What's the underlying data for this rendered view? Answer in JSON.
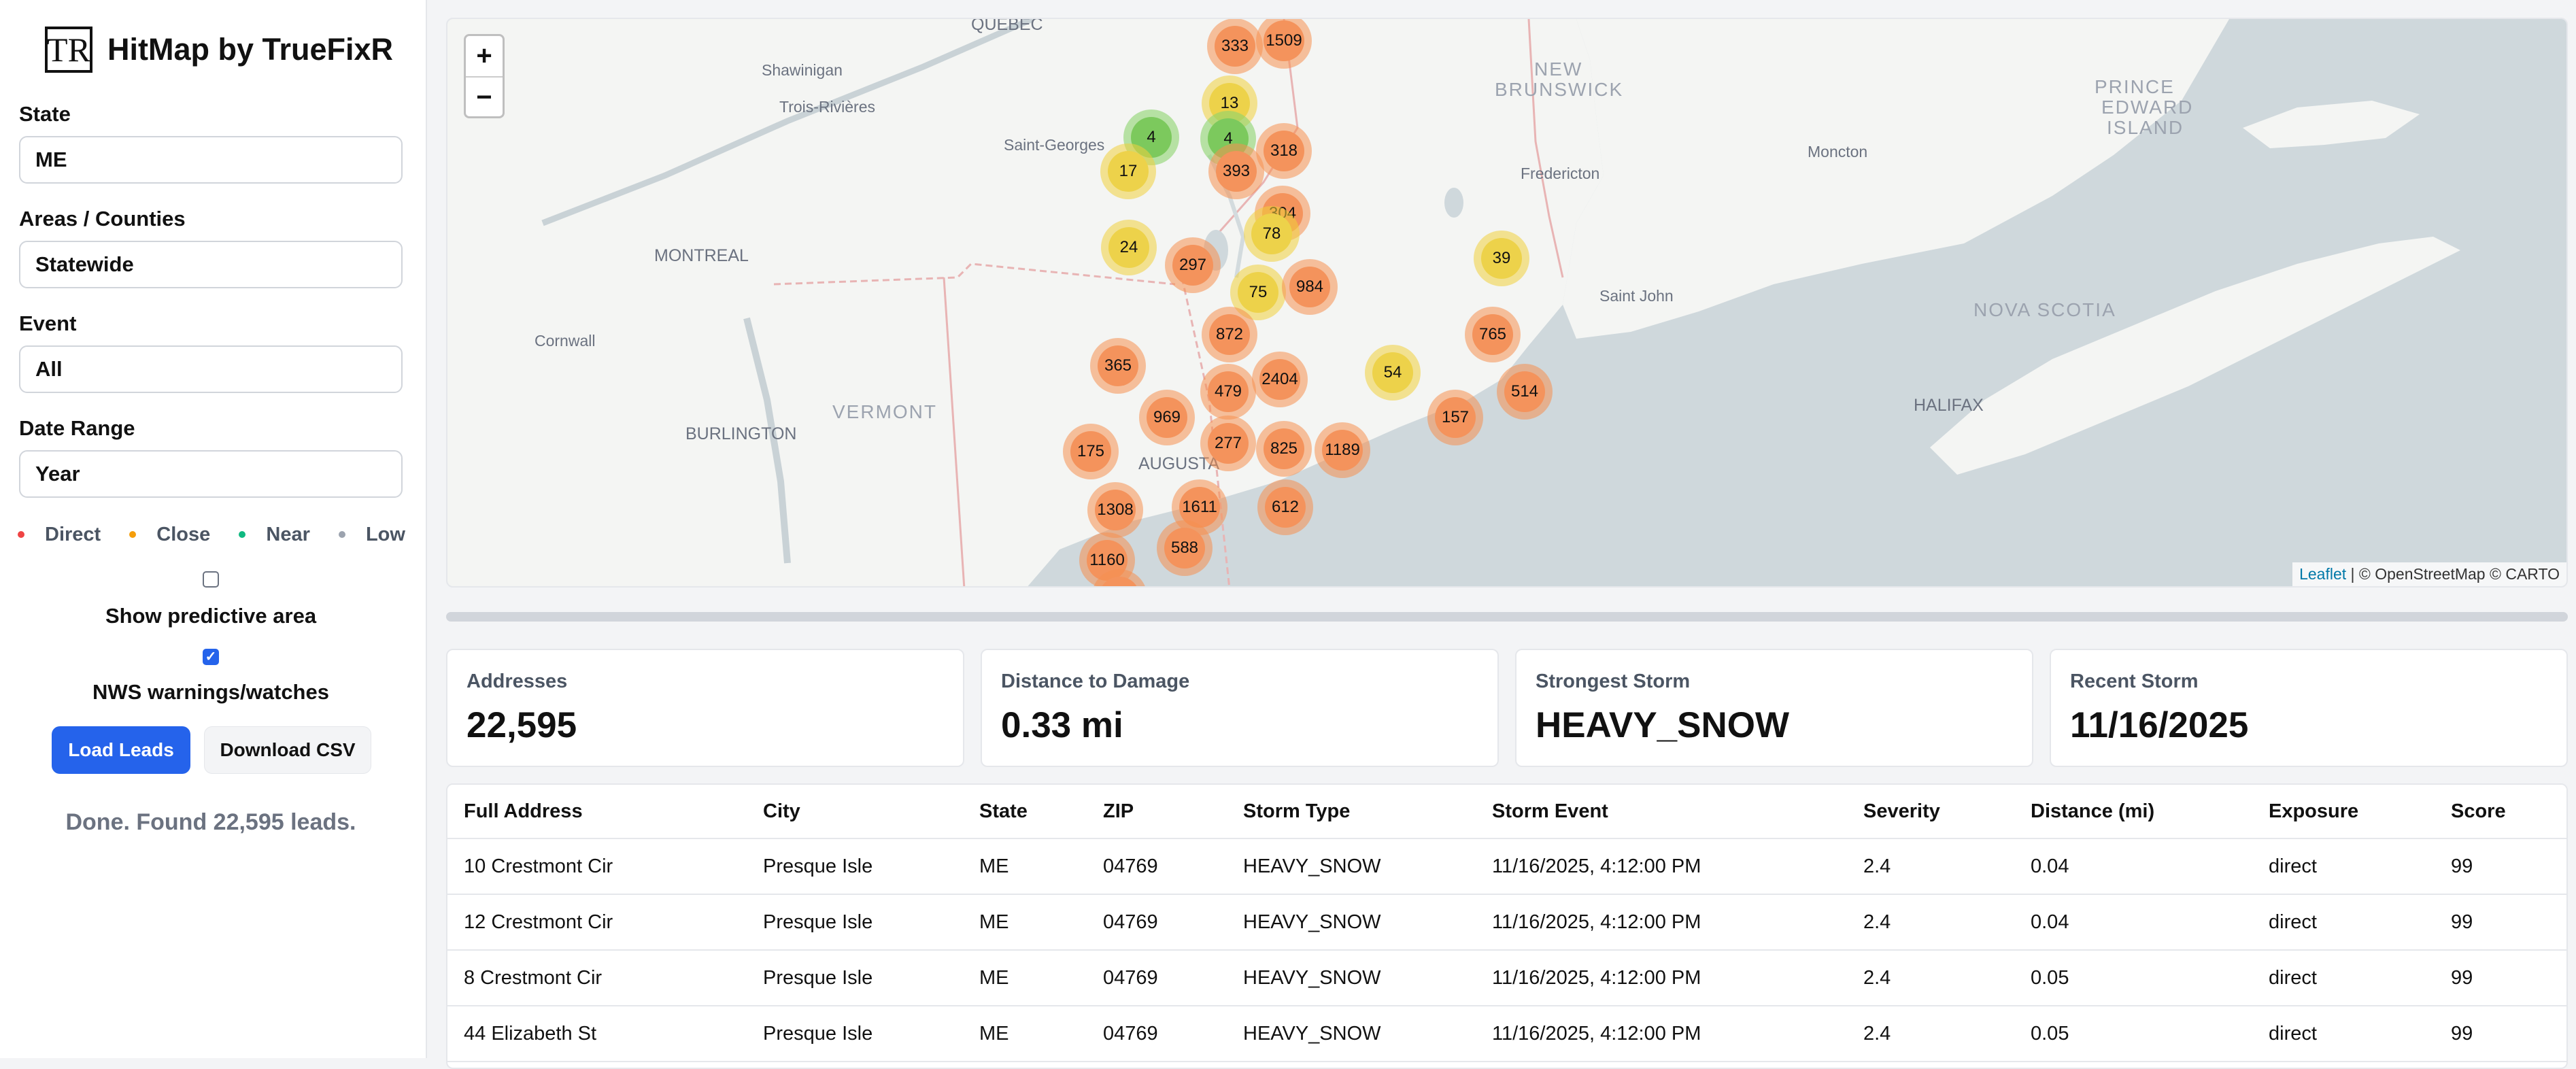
{
  "app": {
    "logo_text": "TR",
    "title": "HitMap by TrueFixR"
  },
  "filters": {
    "state": {
      "label": "State",
      "value": "ME"
    },
    "areas": {
      "label": "Areas / Counties",
      "value": "Statewide"
    },
    "event": {
      "label": "Event",
      "value": "All"
    },
    "date_range": {
      "label": "Date Range",
      "value": "Year"
    }
  },
  "legend": [
    {
      "label": "Direct",
      "color": "#ef4444"
    },
    {
      "label": "Close",
      "color": "#f59e0b"
    },
    {
      "label": "Near",
      "color": "#10b981"
    },
    {
      "label": "Low",
      "color": "#9ca3af"
    }
  ],
  "options": {
    "predictive": {
      "label": "Show predictive area",
      "checked": false
    },
    "nws": {
      "label": "NWS warnings/watches",
      "checked": true
    }
  },
  "buttons": {
    "load": "Load Leads",
    "download": "Download CSV"
  },
  "status": "Done. Found 22,595 leads.",
  "map": {
    "zoom_in": "+",
    "zoom_out": "−",
    "attribution_link": "Leaflet",
    "attribution_rest": " | © OpenStreetMap © CARTO",
    "places": {
      "quebec": "QUÉBEC",
      "shawinigan": "Shawinigan",
      "trois_rivieres": "Trois-Rivières",
      "saint_georges": "Saint-Georges",
      "montreal": "MONTREAL",
      "cornwall": "Cornwall",
      "vermont": "VERMONT",
      "burlington": "BURLINGTON",
      "augusta": "AUGUSTA",
      "new_brunswick_1": "NEW",
      "new_brunswick_2": "BRUNSWICK",
      "fredericton": "Fredericton",
      "saint_john": "Saint John",
      "moncton": "Moncton",
      "pei_1": "PRINCE",
      "pei_2": "EDWARD",
      "pei_3": "ISLAND",
      "nova_scotia": "NOVA SCOTIA",
      "halifax": "HALIFAX"
    },
    "clusters": [
      {
        "count": "333",
        "color": "orange"
      },
      {
        "count": "1509",
        "color": "orange"
      },
      {
        "count": "13",
        "color": "yellow"
      },
      {
        "count": "4",
        "color": "green"
      },
      {
        "count": "4",
        "color": "green"
      },
      {
        "count": "17",
        "color": "yellow"
      },
      {
        "count": "318",
        "color": "orange"
      },
      {
        "count": "393",
        "color": "orange"
      },
      {
        "count": "304",
        "color": "orange"
      },
      {
        "count": "78",
        "color": "yellow"
      },
      {
        "count": "24",
        "color": "yellow"
      },
      {
        "count": "297",
        "color": "orange"
      },
      {
        "count": "39",
        "color": "yellow"
      },
      {
        "count": "75",
        "color": "yellow"
      },
      {
        "count": "984",
        "color": "orange"
      },
      {
        "count": "872",
        "color": "orange"
      },
      {
        "count": "765",
        "color": "orange"
      },
      {
        "count": "365",
        "color": "orange"
      },
      {
        "count": "54",
        "color": "yellow"
      },
      {
        "count": "2404",
        "color": "orange"
      },
      {
        "count": "479",
        "color": "orange"
      },
      {
        "count": "514",
        "color": "orange"
      },
      {
        "count": "969",
        "color": "orange"
      },
      {
        "count": "157",
        "color": "orange"
      },
      {
        "count": "277",
        "color": "orange"
      },
      {
        "count": "825",
        "color": "orange"
      },
      {
        "count": "1189",
        "color": "orange"
      },
      {
        "count": "175",
        "color": "orange"
      },
      {
        "count": "1611",
        "color": "orange"
      },
      {
        "count": "612",
        "color": "orange"
      },
      {
        "count": "1308",
        "color": "orange"
      },
      {
        "count": "588",
        "color": "orange"
      },
      {
        "count": "1160",
        "color": "orange"
      },
      {
        "count": "",
        "color": "orange"
      }
    ]
  },
  "stats": [
    {
      "label": "Addresses",
      "value": "22,595"
    },
    {
      "label": "Distance to Damage",
      "value": "0.33 mi"
    },
    {
      "label": "Strongest Storm",
      "value": "HEAVY_SNOW"
    },
    {
      "label": "Recent Storm",
      "value": "11/16/2025"
    }
  ],
  "table": {
    "columns": [
      "Full Address",
      "City",
      "State",
      "ZIP",
      "Storm Type",
      "Storm Event",
      "Severity",
      "Distance (mi)",
      "Exposure",
      "Score"
    ],
    "rows": [
      [
        "10 Crestmont Cir",
        "Presque Isle",
        "ME",
        "04769",
        "HEAVY_SNOW",
        "11/16/2025, 4:12:00 PM",
        "2.4",
        "0.04",
        "direct",
        "99"
      ],
      [
        "12 Crestmont Cir",
        "Presque Isle",
        "ME",
        "04769",
        "HEAVY_SNOW",
        "11/16/2025, 4:12:00 PM",
        "2.4",
        "0.04",
        "direct",
        "99"
      ],
      [
        "8 Crestmont Cir",
        "Presque Isle",
        "ME",
        "04769",
        "HEAVY_SNOW",
        "11/16/2025, 4:12:00 PM",
        "2.4",
        "0.05",
        "direct",
        "99"
      ],
      [
        "44 Elizabeth St",
        "Presque Isle",
        "ME",
        "04769",
        "HEAVY_SNOW",
        "11/16/2025, 4:12:00 PM",
        "2.4",
        "0.05",
        "direct",
        "99"
      ]
    ]
  }
}
